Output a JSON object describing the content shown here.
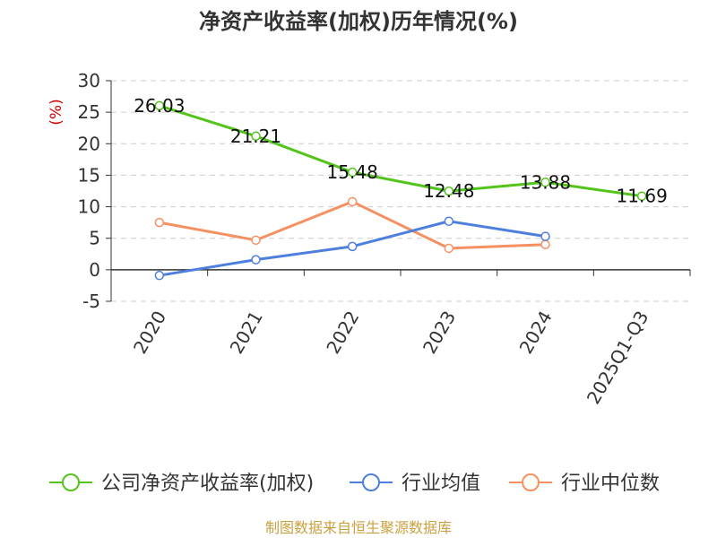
{
  "chart_data": {
    "type": "line",
    "title": "净资产收益率(加权)历年情况(%)",
    "ylabel": "(%)",
    "categories": [
      "2020",
      "2021",
      "2022",
      "2023",
      "2024",
      "2025Q1-Q3"
    ],
    "y_ticks": [
      "30",
      "25",
      "20",
      "15",
      "10",
      "5",
      "0",
      "-5"
    ],
    "ylim": [
      -5,
      30
    ],
    "grid": true,
    "legend_position": "bottom",
    "series": [
      {
        "name": "公司净资产收益率(加权)",
        "color": "#52c41a",
        "values": [
          26.03,
          21.21,
          15.48,
          12.48,
          13.88,
          11.69
        ],
        "labels": [
          "26.03",
          "21.21",
          "15.48",
          "12.48",
          "13.88",
          "11.69"
        ]
      },
      {
        "name": "行业均值",
        "color": "#4e7fdf",
        "values": [
          -0.9,
          1.6,
          3.7,
          7.7,
          5.3,
          null
        ]
      },
      {
        "name": "行业中位数",
        "color": "#f59062",
        "values": [
          7.5,
          4.7,
          10.8,
          3.4,
          4.0,
          null
        ]
      }
    ],
    "source": "制图数据来自恒生聚源数据库"
  }
}
